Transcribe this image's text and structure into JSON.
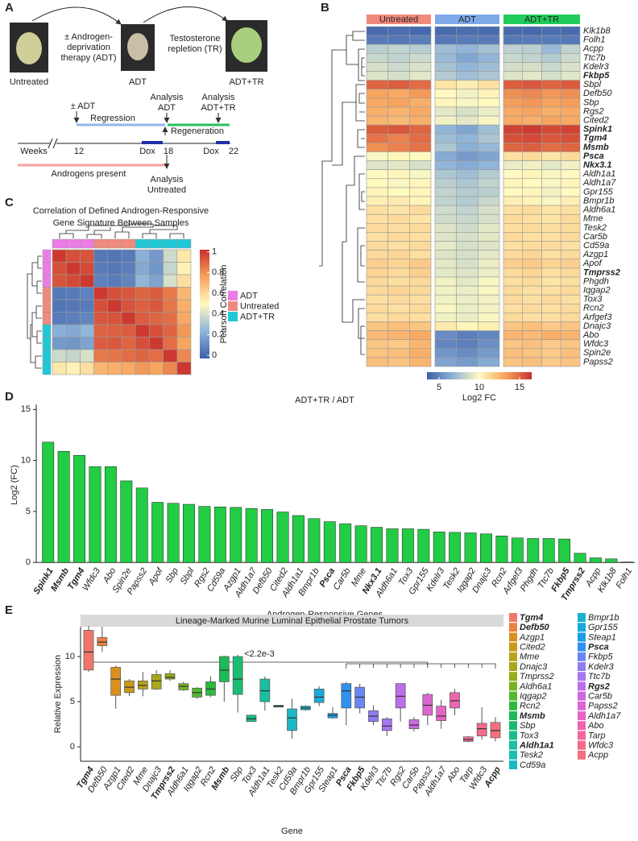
{
  "panel_letters": [
    "A",
    "B",
    "C",
    "D",
    "E"
  ],
  "diagram": {
    "untreated": "Untreated",
    "adt_therapy": [
      "± Androgen-",
      "deprivation",
      "therapy (ADT)"
    ],
    "adt": "ADT",
    "tr": [
      "Testosterone",
      "repletion (TR)"
    ],
    "adt_tr": "ADT+TR",
    "adt_start": "± ADT",
    "analysis_adt": [
      "Analysis",
      "ADT"
    ],
    "analysis_adt_tr": [
      "Analysis",
      "ADT+TR"
    ],
    "regression": "Regression",
    "regeneration": "Regeneration",
    "weeks": "Weeks",
    "week_start": "12",
    "dox_1": "Dox",
    "week_mid": "18",
    "dox_2": "Dox",
    "week_end": "22",
    "androgens": "Androgens present",
    "analysis_untreated": [
      "Analysis",
      "Untreated"
    ]
  },
  "chart_data": [
    {
      "type": "heatmap",
      "groups": [
        {
          "name": "Untreated",
          "color": "#f08a7c"
        },
        {
          "name": "ADT",
          "color": "#80a9ea"
        },
        {
          "name": "ADT+TR",
          "color": "#1fcc5c"
        }
      ],
      "column_group": [
        "Untreated",
        "Untreated",
        "Untreated",
        "ADT",
        "ADT",
        "ADT",
        "ADT+TR",
        "ADT+TR",
        "ADT+TR",
        "ADT+TR"
      ],
      "genes": [
        "Klk1b8",
        "Folh1",
        "Acpp",
        "Ttc7b",
        "Kdelr3",
        "Fkbp5",
        "Sbpl",
        "Defb50",
        "Sbp",
        "Rgs2",
        "Cited2",
        "Spink1",
        "Tgm4",
        "Msmb",
        "Psca",
        "Nkx3.1",
        "Aldh1a1",
        "Aldh1a7",
        "Gpr155",
        "Bmpr1b",
        "Aldh6a1",
        "Mme",
        "Tesk2",
        "Car5b",
        "Cd59a",
        "Azgp1",
        "Apof",
        "Tmprss2",
        "Phgdh",
        "Iqgap2",
        "Tox3",
        "Rcn2",
        "Arfgef3",
        "Dnajc3",
        "Abo",
        "Wfdc3",
        "Spin2e",
        "Papss2"
      ],
      "bold": [
        false,
        false,
        false,
        false,
        false,
        true,
        false,
        false,
        false,
        false,
        false,
        true,
        true,
        true,
        true,
        true,
        false,
        false,
        false,
        false,
        false,
        false,
        false,
        false,
        false,
        false,
        false,
        true,
        false,
        false,
        false,
        false,
        false,
        false,
        false,
        false,
        false,
        false
      ],
      "values": [
        [
          4.0,
          4.1,
          3.9,
          4.0,
          4.1,
          4.0,
          4.0,
          3.9,
          4.1,
          4.0
        ],
        [
          4.6,
          4.5,
          4.7,
          4.5,
          4.6,
          4.6,
          4.5,
          4.6,
          4.6,
          4.5
        ],
        [
          8.0,
          8.2,
          7.9,
          7.2,
          6.8,
          7.4,
          8.1,
          8.0,
          7.0,
          8.2
        ],
        [
          8.4,
          8.2,
          8.5,
          7.0,
          6.2,
          6.8,
          8.4,
          8.2,
          7.8,
          8.5
        ],
        [
          8.8,
          8.5,
          8.9,
          7.4,
          6.8,
          7.2,
          8.7,
          8.8,
          8.4,
          8.9
        ],
        [
          9.0,
          8.8,
          9.2,
          7.8,
          7.2,
          7.6,
          9.0,
          9.2,
          8.8,
          9.1
        ],
        [
          15.0,
          15.2,
          14.8,
          10.8,
          10.5,
          11.0,
          15.2,
          15.4,
          15.0,
          15.3
        ],
        [
          13.2,
          13.0,
          13.5,
          10.0,
          9.6,
          10.2,
          13.8,
          14.0,
          13.6,
          13.8
        ],
        [
          13.0,
          13.2,
          12.8,
          10.2,
          9.8,
          10.0,
          13.4,
          13.6,
          13.2,
          13.4
        ],
        [
          12.8,
          12.6,
          13.0,
          9.2,
          8.8,
          9.4,
          13.0,
          13.2,
          12.8,
          13.0
        ],
        [
          12.6,
          12.4,
          12.8,
          9.6,
          9.2,
          9.8,
          13.0,
          12.8,
          13.2,
          13.0
        ],
        [
          15.2,
          15.4,
          15.0,
          6.8,
          6.2,
          7.2,
          16.0,
          16.2,
          15.8,
          16.0
        ],
        [
          14.6,
          14.2,
          14.8,
          7.2,
          6.8,
          7.6,
          15.6,
          15.8,
          15.4,
          15.6
        ],
        [
          13.8,
          14.2,
          14.6,
          7.6,
          6.6,
          7.0,
          15.0,
          15.2,
          14.8,
          15.0
        ],
        [
          9.8,
          10.2,
          10.0,
          6.4,
          5.8,
          6.2,
          11.0,
          11.2,
          10.8,
          11.2
        ],
        [
          9.0,
          9.2,
          8.8,
          6.8,
          6.4,
          6.8,
          9.4,
          9.6,
          9.2,
          9.6
        ],
        [
          10.0,
          10.2,
          9.8,
          7.6,
          7.2,
          7.8,
          10.0,
          10.2,
          9.8,
          10.0
        ],
        [
          10.0,
          9.8,
          10.2,
          8.0,
          7.6,
          8.2,
          10.2,
          10.0,
          9.8,
          10.2
        ],
        [
          10.2,
          10.0,
          10.2,
          8.2,
          7.8,
          8.0,
          10.0,
          10.2,
          9.6,
          10.0
        ],
        [
          10.4,
          10.6,
          10.2,
          8.2,
          7.8,
          8.4,
          10.4,
          10.2,
          9.8,
          10.4
        ],
        [
          11.0,
          10.8,
          11.2,
          8.6,
          8.2,
          8.8,
          11.0,
          11.2,
          10.8,
          11.0
        ],
        [
          11.0,
          11.2,
          10.8,
          8.6,
          8.4,
          8.8,
          11.2,
          11.0,
          10.8,
          11.2
        ],
        [
          11.2,
          11.0,
          11.2,
          9.0,
          8.6,
          9.2,
          11.0,
          11.2,
          11.0,
          11.2
        ],
        [
          11.0,
          11.2,
          11.0,
          9.0,
          8.8,
          9.2,
          11.2,
          11.0,
          11.0,
          11.2
        ],
        [
          11.2,
          11.0,
          11.2,
          9.2,
          8.8,
          9.0,
          11.0,
          11.2,
          11.2,
          11.0
        ],
        [
          11.2,
          11.4,
          11.0,
          9.0,
          8.8,
          9.2,
          11.2,
          11.4,
          11.0,
          11.2
        ],
        [
          11.6,
          11.4,
          11.8,
          9.2,
          8.8,
          9.4,
          11.6,
          11.8,
          11.4,
          11.6
        ],
        [
          11.4,
          11.2,
          11.6,
          9.2,
          9.0,
          9.4,
          11.2,
          11.4,
          11.0,
          11.2
        ],
        [
          11.2,
          11.0,
          11.2,
          9.6,
          9.2,
          9.8,
          11.0,
          11.2,
          10.8,
          11.0
        ],
        [
          11.2,
          11.4,
          11.2,
          9.6,
          9.4,
          9.8,
          11.2,
          11.0,
          11.0,
          11.2
        ],
        [
          11.0,
          11.2,
          11.0,
          9.6,
          9.4,
          9.6,
          11.2,
          11.0,
          11.2,
          11.0
        ],
        [
          11.2,
          11.0,
          11.2,
          9.8,
          9.4,
          9.6,
          11.0,
          11.2,
          11.0,
          11.2
        ],
        [
          11.0,
          11.2,
          11.0,
          9.6,
          9.4,
          9.8,
          11.2,
          11.0,
          11.0,
          11.2
        ],
        [
          12.0,
          12.2,
          12.0,
          10.6,
          10.2,
          10.4,
          12.0,
          12.2,
          11.8,
          12.0
        ],
        [
          12.4,
          12.6,
          13.0,
          5.2,
          4.8,
          5.0,
          12.6,
          12.4,
          12.8,
          12.6
        ],
        [
          12.0,
          11.8,
          12.6,
          5.0,
          4.8,
          5.4,
          12.0,
          12.2,
          11.8,
          12.0
        ],
        [
          12.0,
          12.2,
          12.8,
          5.6,
          5.2,
          5.8,
          12.2,
          12.0,
          11.8,
          12.2
        ],
        [
          12.2,
          12.0,
          12.6,
          6.2,
          5.8,
          6.4,
          12.0,
          12.2,
          11.8,
          12.0
        ]
      ],
      "clim": [
        3.5,
        16.5
      ],
      "colorbar_ticks": [
        5,
        10,
        15
      ],
      "colorbar_label": "Log2 FC",
      "colorscale": [
        "#3b5ea8",
        "#8fb4d9",
        "#fffac0",
        "#f7a35c",
        "#c9302c"
      ]
    },
    {
      "type": "heatmap",
      "title": [
        "Correlation of Defined Androgen-Responsive",
        "Gene Signature Between Samples"
      ],
      "groups": [
        {
          "name": "ADT",
          "color": "#ec7ce6"
        },
        {
          "name": "Untreated",
          "color": "#f08a7c"
        },
        {
          "name": "ADT+TR",
          "color": "#1fc8d6"
        }
      ],
      "sample_group": [
        "ADT",
        "ADT",
        "ADT",
        "Untreated",
        "Untreated",
        "Untreated",
        "ADT+TR",
        "ADT+TR",
        "ADT+TR",
        "ADT+TR"
      ],
      "values": [
        [
          1.0,
          0.95,
          0.94,
          0.05,
          0.04,
          0.06,
          0.22,
          0.15,
          0.38,
          0.55
        ],
        [
          0.95,
          1.0,
          0.96,
          0.06,
          0.05,
          0.07,
          0.2,
          0.14,
          0.36,
          0.52
        ],
        [
          0.94,
          0.96,
          1.0,
          0.08,
          0.06,
          0.09,
          0.24,
          0.18,
          0.4,
          0.58
        ],
        [
          0.05,
          0.06,
          0.08,
          1.0,
          0.95,
          0.93,
          0.9,
          0.92,
          0.85,
          0.7
        ],
        [
          0.04,
          0.05,
          0.06,
          0.95,
          1.0,
          0.94,
          0.91,
          0.93,
          0.86,
          0.72
        ],
        [
          0.06,
          0.07,
          0.09,
          0.93,
          0.94,
          1.0,
          0.92,
          0.9,
          0.88,
          0.74
        ],
        [
          0.22,
          0.2,
          0.24,
          0.9,
          0.91,
          0.92,
          1.0,
          0.95,
          0.9,
          0.78
        ],
        [
          0.15,
          0.14,
          0.18,
          0.92,
          0.93,
          0.9,
          0.95,
          1.0,
          0.88,
          0.75
        ],
        [
          0.38,
          0.36,
          0.4,
          0.85,
          0.86,
          0.88,
          0.9,
          0.88,
          1.0,
          0.82
        ],
        [
          0.55,
          0.52,
          0.58,
          0.7,
          0.72,
          0.74,
          0.78,
          0.75,
          0.82,
          1.0
        ]
      ],
      "clim": [
        -0.03,
        1.02
      ],
      "colorbar_ticks": [
        0,
        0.2,
        0.4,
        0.6,
        0.8,
        1
      ],
      "colorbar_label": "Pearson Correlation",
      "colorscale": [
        "#3b5ea8",
        "#8fb4d9",
        "#fffac0",
        "#f7a35c",
        "#c9302c"
      ]
    },
    {
      "type": "bar",
      "title": "ADT+TR / ADT",
      "ylabel": "Log2 (FC)",
      "xlabel": "Androgen-Responsive Genes",
      "categories": [
        "Spink1",
        "Msmb",
        "Tgm4",
        "Wfdc3",
        "Abo",
        "Spin2e",
        "Papss2",
        "Apof",
        "Sbp",
        "Sbpl",
        "Rgs2",
        "Cd59a",
        "Azgp1",
        "Aldh1a7",
        "Defb50",
        "Cited2",
        "Aldh1a1",
        "Bmpr1b",
        "Psca",
        "Car5b",
        "Mme",
        "Nkx3.1",
        "Aldh6a1",
        "Tox3",
        "Gpr155",
        "Kdelr3",
        "Tesk2",
        "Iqgap2",
        "Dnajc3",
        "Rcn2",
        "Arfgef3",
        "Phgdh",
        "Ttc7b",
        "Fkbp5",
        "Tmprss2",
        "Acpp",
        "Klk1b8",
        "Folh1"
      ],
      "bold": [
        true,
        true,
        true,
        false,
        false,
        false,
        false,
        false,
        false,
        false,
        false,
        false,
        false,
        false,
        false,
        false,
        false,
        false,
        true,
        false,
        false,
        true,
        false,
        false,
        false,
        false,
        false,
        false,
        false,
        false,
        false,
        false,
        false,
        true,
        true,
        false,
        false,
        false
      ],
      "values": [
        11.8,
        10.9,
        10.5,
        9.4,
        9.4,
        8.0,
        7.3,
        5.9,
        5.8,
        5.7,
        5.5,
        5.45,
        5.4,
        5.3,
        5.2,
        4.95,
        4.6,
        4.3,
        4.0,
        3.8,
        3.6,
        3.45,
        3.3,
        3.3,
        3.25,
        3.0,
        2.95,
        2.9,
        2.8,
        2.6,
        2.4,
        2.35,
        2.35,
        2.3,
        0.9,
        0.45,
        0.35,
        0.05
      ],
      "color": "#22cc44",
      "ylim": [
        -0.3,
        15.5
      ],
      "yticks": [
        0,
        5,
        10,
        15
      ]
    },
    {
      "type": "box",
      "strip": "Lineage-Marked Murine Luminal Epithelial Prostate Tumors",
      "annotation": "<2.2e-3",
      "ylabel": "Relative Expression",
      "xlabel": "Gene",
      "categories": [
        "Tgm4",
        "Defb50",
        "Azgp1",
        "Cited2",
        "Mme",
        "Dnajc3",
        "Tmprss2",
        "Aldh6a1",
        "Iqgap2",
        "Rcn2",
        "Msmb",
        "Sbp",
        "Tox3",
        "Aldh1a1",
        "Tesk2",
        "Cd59a",
        "Bmpr1b",
        "Gpr155",
        "Steap1",
        "Psca",
        "Fkbp5",
        "Kdelr3",
        "Ttc7b",
        "Rgs2",
        "Car5b",
        "Papss2",
        "Aldh1a7",
        "Abo",
        "Tarp",
        "Wfdc3",
        "Acpp"
      ],
      "bold": [
        true,
        false,
        false,
        false,
        false,
        false,
        true,
        false,
        false,
        false,
        true,
        false,
        false,
        false,
        false,
        false,
        false,
        false,
        false,
        true,
        true,
        false,
        false,
        false,
        false,
        false,
        false,
        false,
        false,
        false,
        true
      ],
      "legend_bold": [
        true,
        true,
        false,
        false,
        false,
        false,
        false,
        false,
        false,
        false,
        true,
        false,
        false,
        true,
        false,
        false,
        false,
        false,
        false,
        true,
        false,
        false,
        false,
        true,
        false,
        false,
        false,
        false,
        false,
        false,
        false
      ],
      "colors": [
        "#f0766c",
        "#ed8141",
        "#d9901f",
        "#c99a1a",
        "#b9a21a",
        "#a7a81a",
        "#93ae1a",
        "#78b41e",
        "#52b830",
        "#2cba3e",
        "#1cbb57",
        "#1abc72",
        "#1abd8a",
        "#1abea0",
        "#1abeb4",
        "#1ab9c4",
        "#1ab2d0",
        "#1aa9dc",
        "#1a9ee8",
        "#2f91f0",
        "#6b86f2",
        "#8f7ef2",
        "#a777f0",
        "#bb70ea",
        "#cc6ae0",
        "#db66d2",
        "#e665c2",
        "#ee65b0",
        "#f2679e",
        "#f46b8c",
        "#f3707c"
      ],
      "values": [
        [
          8.3,
          8.5,
          10.5,
          12.9,
          13.4
        ],
        [
          10.5,
          11.2,
          11.6,
          12.1,
          13.3
        ],
        [
          4.2,
          5.7,
          7.5,
          8.8,
          9.0
        ],
        [
          5.6,
          6.0,
          6.6,
          7.3,
          7.5
        ],
        [
          5.6,
          6.4,
          6.8,
          7.3,
          8.3
        ],
        [
          6.3,
          6.4,
          7.3,
          8.0,
          8.5
        ],
        [
          7.3,
          7.5,
          7.7,
          8.1,
          8.5
        ],
        [
          6.2,
          6.3,
          6.7,
          7.0,
          7.2
        ],
        [
          5.3,
          5.5,
          6.0,
          6.5,
          6.6
        ],
        [
          5.5,
          5.7,
          6.4,
          7.2,
          7.8
        ],
        [
          5.0,
          7.2,
          8.5,
          10.0,
          10.1
        ],
        [
          3.8,
          5.8,
          7.5,
          10.0,
          10.2
        ],
        [
          2.8,
          2.8,
          3.1,
          3.5,
          3.6
        ],
        [
          4.0,
          5.0,
          6.2,
          7.5,
          7.8
        ],
        [
          4.4,
          4.4,
          4.5,
          4.6,
          4.6
        ],
        [
          0.9,
          1.8,
          3.2,
          4.2,
          5.3
        ],
        [
          4.0,
          4.1,
          4.3,
          4.5,
          4.6
        ],
        [
          4.5,
          4.9,
          5.5,
          6.4,
          6.7
        ],
        [
          3.1,
          3.2,
          3.5,
          3.7,
          4.4
        ],
        [
          2.4,
          4.3,
          6.2,
          7.0,
          7.2
        ],
        [
          3.7,
          4.3,
          5.5,
          6.6,
          7.0
        ],
        [
          2.4,
          2.8,
          3.4,
          4.0,
          4.6
        ],
        [
          1.2,
          1.8,
          2.3,
          3.1,
          3.3
        ],
        [
          2.8,
          4.3,
          5.6,
          7.0,
          7.0
        ],
        [
          1.7,
          2.0,
          2.4,
          3.0,
          3.3
        ],
        [
          2.4,
          3.5,
          4.6,
          5.8,
          6.0
        ],
        [
          2.0,
          2.9,
          3.4,
          4.5,
          5.2
        ],
        [
          3.5,
          4.3,
          5.1,
          6.0,
          6.4
        ],
        [
          0.5,
          0.6,
          0.8,
          1.1,
          1.2
        ],
        [
          0.8,
          1.2,
          2.0,
          2.6,
          4.4
        ],
        [
          0.6,
          1.0,
          1.8,
          2.7,
          3.3
        ]
      ],
      "ylim": [
        -1.6,
        13.3
      ],
      "yticks": [
        0,
        5,
        10
      ]
    }
  ]
}
